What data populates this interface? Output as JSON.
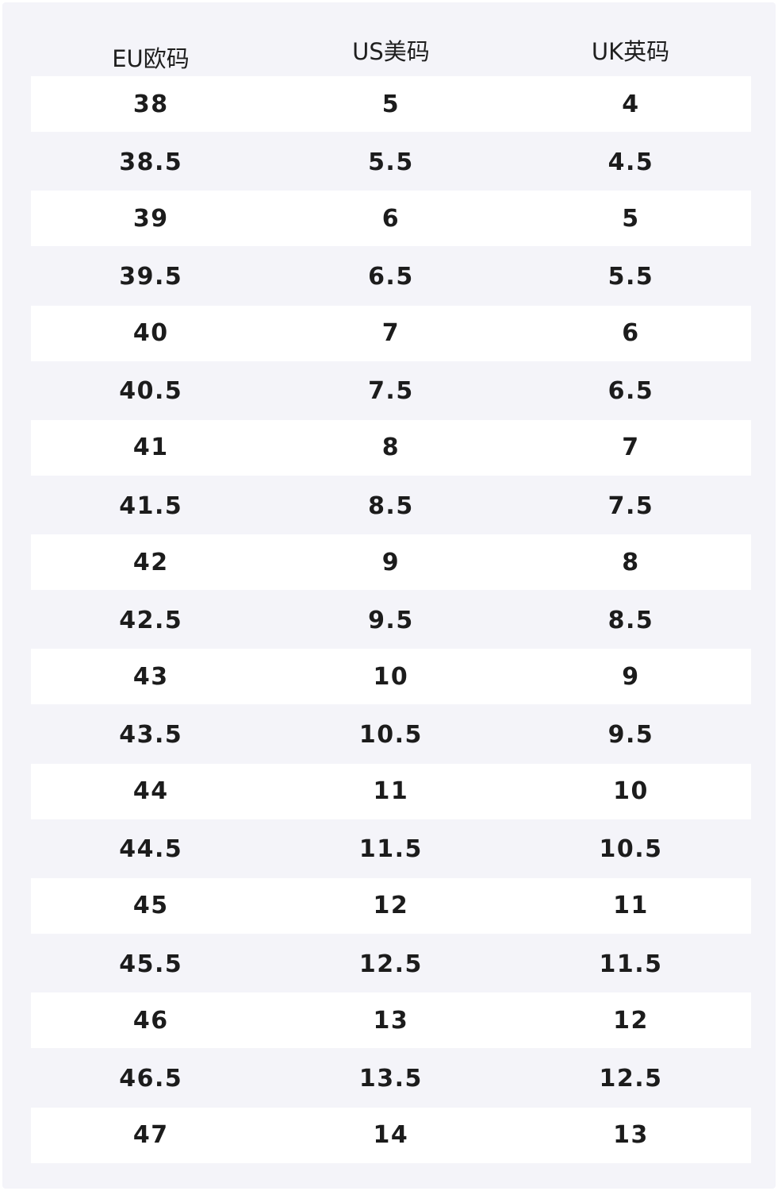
{
  "table": {
    "headers": [
      "EU欧码",
      "US美码",
      "UK英码"
    ],
    "rows": [
      [
        "38",
        "5",
        "4"
      ],
      [
        "38.5",
        "5.5",
        "4.5"
      ],
      [
        "39",
        "6",
        "5"
      ],
      [
        "39.5",
        "6.5",
        "5.5"
      ],
      [
        "40",
        "7",
        "6"
      ],
      [
        "40.5",
        "7.5",
        "6.5"
      ],
      [
        "41",
        "8",
        "7"
      ],
      [
        "41.5",
        "8.5",
        "7.5"
      ],
      [
        "42",
        "9",
        "8"
      ],
      [
        "42.5",
        "9.5",
        "8.5"
      ],
      [
        "43",
        "10",
        "9"
      ],
      [
        "43.5",
        "10.5",
        "9.5"
      ],
      [
        "44",
        "11",
        "10"
      ],
      [
        "44.5",
        "11.5",
        "10.5"
      ],
      [
        "45",
        "12",
        "11"
      ],
      [
        "45.5",
        "12.5",
        "11.5"
      ],
      [
        "46",
        "13",
        "12"
      ],
      [
        "46.5",
        "13.5",
        "12.5"
      ],
      [
        "47",
        "14",
        "13"
      ]
    ]
  },
  "colors": {
    "panel_background": "#f4f4f9",
    "stripe_background": "#ffffff",
    "text": "#1c1c1c"
  }
}
